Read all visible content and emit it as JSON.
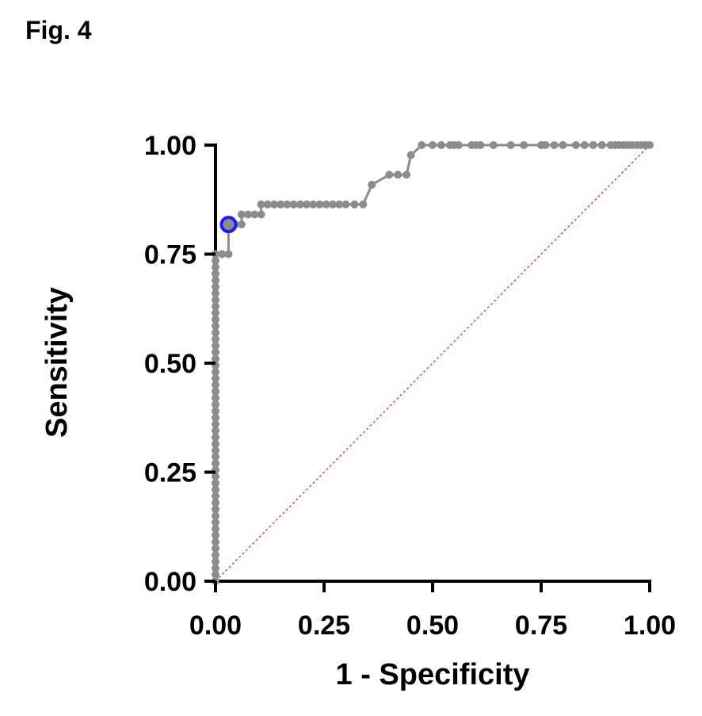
{
  "figure_label": "Fig. 4",
  "chart_data": {
    "type": "line",
    "title": "",
    "xlabel": "1 - Specificity",
    "ylabel": "Sensitivity",
    "xlim": [
      0,
      1
    ],
    "ylim": [
      0,
      1
    ],
    "xticks": [
      "0.00",
      "0.25",
      "0.50",
      "0.75",
      "1.00"
    ],
    "yticks": [
      "0.00",
      "0.25",
      "0.50",
      "0.75",
      "1.00"
    ],
    "grid": false,
    "colors": {
      "roc": "#8c8c8c",
      "reference": "#e8483f",
      "highlight": "#1a1aff",
      "axis": "#000000"
    },
    "series": [
      {
        "points": [
          [
            0,
            0
          ],
          [
            0,
            0.015
          ],
          [
            0,
            0.03
          ],
          [
            0,
            0.045
          ],
          [
            0,
            0.06
          ],
          [
            0,
            0.075
          ],
          [
            0,
            0.09
          ],
          [
            0,
            0.105
          ],
          [
            0,
            0.12
          ],
          [
            0,
            0.135
          ],
          [
            0,
            0.15
          ],
          [
            0,
            0.165
          ],
          [
            0,
            0.18
          ],
          [
            0,
            0.195
          ],
          [
            0,
            0.21
          ],
          [
            0,
            0.225
          ],
          [
            0,
            0.24
          ],
          [
            0,
            0.255
          ],
          [
            0,
            0.27
          ],
          [
            0,
            0.285
          ],
          [
            0,
            0.3
          ],
          [
            0,
            0.315
          ],
          [
            0,
            0.33
          ],
          [
            0,
            0.345
          ],
          [
            0,
            0.36
          ],
          [
            0,
            0.375
          ],
          [
            0,
            0.39
          ],
          [
            0,
            0.405
          ],
          [
            0,
            0.42
          ],
          [
            0,
            0.435
          ],
          [
            0,
            0.45
          ],
          [
            0,
            0.465
          ],
          [
            0,
            0.48
          ],
          [
            0,
            0.495
          ],
          [
            0,
            0.51
          ],
          [
            0,
            0.525
          ],
          [
            0,
            0.54
          ],
          [
            0,
            0.555
          ],
          [
            0,
            0.57
          ],
          [
            0,
            0.585
          ],
          [
            0,
            0.6
          ],
          [
            0,
            0.615
          ],
          [
            0,
            0.63
          ],
          [
            0,
            0.645
          ],
          [
            0,
            0.66
          ],
          [
            0,
            0.675
          ],
          [
            0,
            0.69
          ],
          [
            0,
            0.705
          ],
          [
            0,
            0.72
          ],
          [
            0,
            0.735
          ],
          [
            0,
            0.75
          ],
          [
            0.015,
            0.75
          ],
          [
            0.03,
            0.75
          ],
          [
            0.03,
            0.818
          ],
          [
            0.045,
            0.818
          ],
          [
            0.06,
            0.818
          ],
          [
            0.06,
            0.841
          ],
          [
            0.075,
            0.841
          ],
          [
            0.09,
            0.841
          ],
          [
            0.105,
            0.841
          ],
          [
            0.105,
            0.864
          ],
          [
            0.12,
            0.864
          ],
          [
            0.135,
            0.864
          ],
          [
            0.15,
            0.864
          ],
          [
            0.165,
            0.864
          ],
          [
            0.18,
            0.864
          ],
          [
            0.195,
            0.864
          ],
          [
            0.21,
            0.864
          ],
          [
            0.225,
            0.864
          ],
          [
            0.24,
            0.864
          ],
          [
            0.255,
            0.864
          ],
          [
            0.27,
            0.864
          ],
          [
            0.285,
            0.864
          ],
          [
            0.3,
            0.864
          ],
          [
            0.32,
            0.864
          ],
          [
            0.34,
            0.864
          ],
          [
            0.36,
            0.909
          ],
          [
            0.36,
            0.909
          ],
          [
            0.4,
            0.932
          ],
          [
            0.42,
            0.932
          ],
          [
            0.44,
            0.932
          ],
          [
            0.45,
            0.977
          ],
          [
            0.475,
            1.0
          ],
          [
            0.5,
            1.0
          ],
          [
            0.52,
            1.0
          ],
          [
            0.54,
            1.0
          ],
          [
            0.55,
            1.0
          ],
          [
            0.56,
            1.0
          ],
          [
            0.59,
            1.0
          ],
          [
            0.6,
            1.0
          ],
          [
            0.61,
            1.0
          ],
          [
            0.64,
            1.0
          ],
          [
            0.68,
            1.0
          ],
          [
            0.71,
            1.0
          ],
          [
            0.75,
            1.0
          ],
          [
            0.76,
            1.0
          ],
          [
            0.78,
            1.0
          ],
          [
            0.8,
            1.0
          ],
          [
            0.83,
            1.0
          ],
          [
            0.85,
            1.0
          ],
          [
            0.87,
            1.0
          ],
          [
            0.89,
            1.0
          ],
          [
            0.91,
            1.0
          ],
          [
            0.92,
            1.0
          ],
          [
            0.93,
            1.0
          ],
          [
            0.94,
            1.0
          ],
          [
            0.95,
            1.0
          ],
          [
            0.96,
            1.0
          ],
          [
            0.97,
            1.0
          ],
          [
            0.98,
            1.0
          ],
          [
            0.99,
            1.0
          ],
          [
            1.0,
            1.0
          ]
        ]
      }
    ],
    "highlight_point": [
      0.03,
      0.818
    ],
    "reference_line": [
      [
        0,
        0
      ],
      [
        1,
        1
      ]
    ]
  }
}
